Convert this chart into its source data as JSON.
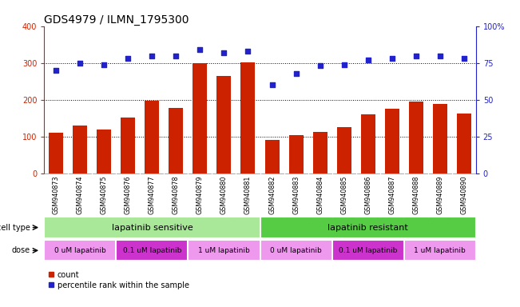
{
  "title": "GDS4979 / ILMN_1795300",
  "samples": [
    "GSM940873",
    "GSM940874",
    "GSM940875",
    "GSM940876",
    "GSM940877",
    "GSM940878",
    "GSM940879",
    "GSM940880",
    "GSM940881",
    "GSM940882",
    "GSM940883",
    "GSM940884",
    "GSM940885",
    "GSM940886",
    "GSM940887",
    "GSM940888",
    "GSM940889",
    "GSM940890"
  ],
  "bar_values": [
    110,
    130,
    120,
    152,
    198,
    178,
    300,
    265,
    302,
    92,
    103,
    113,
    125,
    160,
    175,
    195,
    188,
    162
  ],
  "dot_values": [
    70,
    75,
    74,
    78,
    80,
    80,
    84,
    82,
    83,
    60,
    68,
    73,
    74,
    77,
    78,
    80,
    80,
    78
  ],
  "bar_color": "#cc2200",
  "dot_color": "#2222cc",
  "left_ylim": [
    0,
    400
  ],
  "right_ylim": [
    0,
    100
  ],
  "left_yticks": [
    0,
    100,
    200,
    300,
    400
  ],
  "right_yticks": [
    0,
    25,
    50,
    75,
    100
  ],
  "right_yticklabels": [
    "0",
    "25",
    "50",
    "75",
    "100%"
  ],
  "cell_type_labels": [
    "lapatinib sensitive",
    "lapatinib resistant"
  ],
  "cell_type_color_sensitive": "#aae899",
  "cell_type_color_resistant": "#55cc44",
  "dose_colors": [
    "#ee99ee",
    "#cc33cc",
    "#ee99ee",
    "#ee99ee",
    "#cc33cc",
    "#ee99ee"
  ],
  "dose_labels": [
    "0 uM lapatinib",
    "0.1 uM lapatinib",
    "1 uM lapatinib",
    "0 uM lapatinib",
    "0.1 uM lapatinib",
    "1 uM lapatinib"
  ],
  "bg_color": "#ffffff",
  "tick_color_left": "#cc2200",
  "tick_color_right": "#2222cc",
  "grid_color": "#000000",
  "title_fontsize": 10,
  "bar_fontsize": 6,
  "legend_fontsize": 7
}
